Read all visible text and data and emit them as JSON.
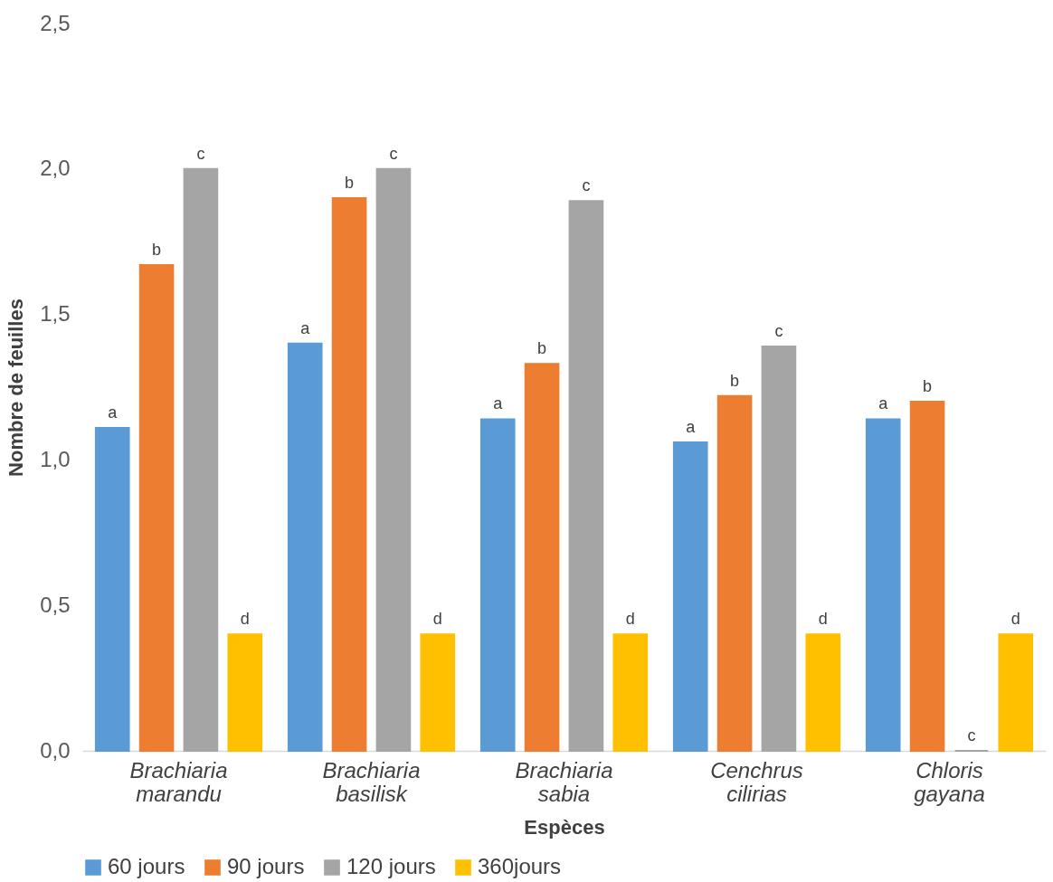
{
  "chart_data": {
    "type": "bar",
    "xlabel": "Espèces",
    "ylabel": "Nombre de feuilles",
    "categories": [
      "Brachiaria marandu",
      "Brachiaria basilisk",
      "Brachiaria sabia",
      "Cenchrus cilirias",
      "Chloris gayana"
    ],
    "series": [
      {
        "name": "60 jours",
        "color": "#5b9bd5",
        "values": [
          1.11,
          1.4,
          1.14,
          1.06,
          1.14
        ],
        "value_labels": [
          "a",
          "a",
          "a",
          "a",
          "a"
        ]
      },
      {
        "name": "90 jours",
        "color": "#ed7d31",
        "values": [
          1.67,
          1.9,
          1.33,
          1.22,
          1.2
        ],
        "value_labels": [
          "b",
          "b",
          "b",
          "b",
          "b"
        ]
      },
      {
        "name": "120 jours",
        "color": "#a5a5a5",
        "values": [
          2.0,
          2.0,
          1.89,
          1.39,
          0
        ],
        "value_labels": [
          "c",
          "c",
          "c",
          "c",
          "c"
        ]
      },
      {
        "name": "360jours",
        "color": "#ffc000",
        "values": [
          0.4,
          0.4,
          0.4,
          0.4,
          0.4
        ],
        "value_labels": [
          "d",
          "d",
          "d",
          "d",
          "d"
        ]
      }
    ],
    "ylim": [
      0,
      2.5
    ],
    "yticks": [
      {
        "value": 0,
        "label": "0,0"
      },
      {
        "value": 0.5,
        "label": "0,5"
      },
      {
        "value": 1,
        "label": "1,0"
      },
      {
        "value": 1.5,
        "label": "1,5"
      },
      {
        "value": 2,
        "label": "2,0"
      },
      {
        "value": 2.5,
        "label": "2,5"
      }
    ],
    "grid": false,
    "legend": "bottom"
  }
}
